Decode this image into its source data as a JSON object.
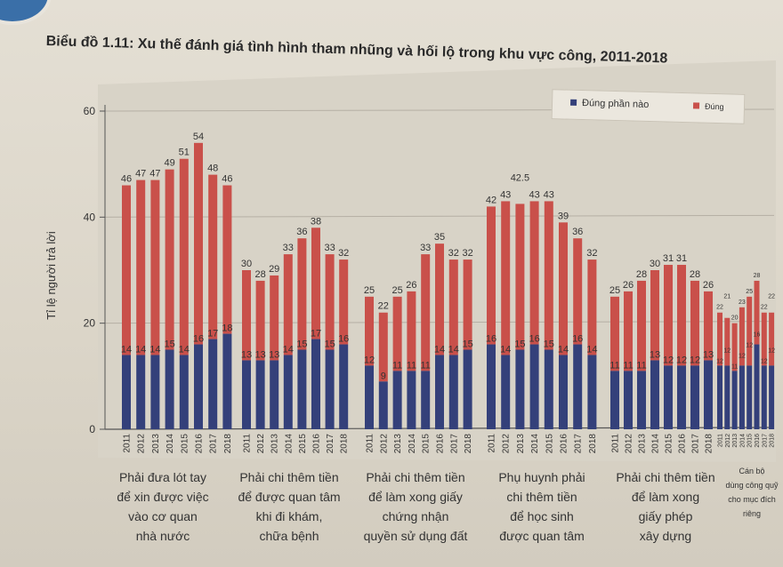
{
  "title": "Biểu đồ 1.11: Xu thế đánh giá tình hình tham nhũng và hối lộ trong khu vực công, 2011-2018",
  "chart_data": {
    "type": "bar",
    "stacked": true,
    "title": "Biểu đồ 1.11: Xu thế đánh giá tình hình tham nhũng và hối lộ trong khu vực công, 2011-2018",
    "ylabel": "Tỉ lệ người trả lời",
    "xlabel": "",
    "ylim": [
      0,
      60
    ],
    "yticks": [
      "0",
      "20",
      "40",
      "60"
    ],
    "grid": true,
    "legend_placement": "top-right",
    "years": [
      "2011",
      "2012",
      "2013",
      "2014",
      "2015",
      "2016",
      "2017",
      "2018"
    ],
    "groups": [
      {
        "label": [
          "Phải đưa lót tay",
          "để xin được việc",
          "vào cơ quan",
          "nhà nước"
        ],
        "partial": [
          14,
          14,
          14,
          15,
          14,
          16,
          17,
          18
        ],
        "total": [
          46,
          47,
          47,
          49,
          51,
          54,
          48,
          46
        ]
      },
      {
        "label": [
          "Phải chi thêm tiền",
          "để được quan tâm",
          "khi đi khám,",
          "chữa bệnh"
        ],
        "partial": [
          13,
          13,
          13,
          14,
          15,
          17,
          15,
          16
        ],
        "total": [
          30,
          28,
          29,
          33,
          36,
          38,
          33,
          32
        ]
      },
      {
        "label": [
          "Phải chi thêm tiền",
          "để làm xong giấy",
          "chứng nhận",
          "quyền sử dụng đất"
        ],
        "partial": [
          12,
          9,
          11,
          11,
          11,
          14,
          14,
          15
        ],
        "total": [
          25,
          22,
          25,
          26,
          33,
          35,
          32,
          32
        ]
      },
      {
        "label": [
          "Phụ huynh phải",
          "chi thêm tiền",
          "để học sinh",
          "được quan tâm"
        ],
        "partial": [
          16,
          14,
          15,
          16,
          15,
          14,
          16,
          14
        ],
        "total": [
          42,
          43,
          42.5,
          43,
          43,
          39,
          36,
          32
        ]
      },
      {
        "label": [
          "Phải chi thêm tiền",
          "để làm xong",
          "giấy phép",
          "xây dựng"
        ],
        "partial": [
          11,
          11,
          11,
          13,
          12,
          12,
          12,
          13
        ],
        "total": [
          25,
          26,
          28,
          30,
          31,
          31,
          28,
          26
        ]
      },
      {
        "label": [
          "Cán bộ",
          "dùng công quỹ",
          "cho mục đích",
          "riêng"
        ],
        "partial": [
          12,
          12,
          11,
          12,
          12,
          16,
          12,
          12
        ],
        "total": [
          22,
          21,
          20,
          23,
          25,
          28,
          22,
          22
        ]
      }
    ],
    "series": [
      {
        "name": "Đúng phần nào",
        "color": "#34407a"
      },
      {
        "name": "Đúng",
        "color": "#c9504a"
      }
    ]
  }
}
